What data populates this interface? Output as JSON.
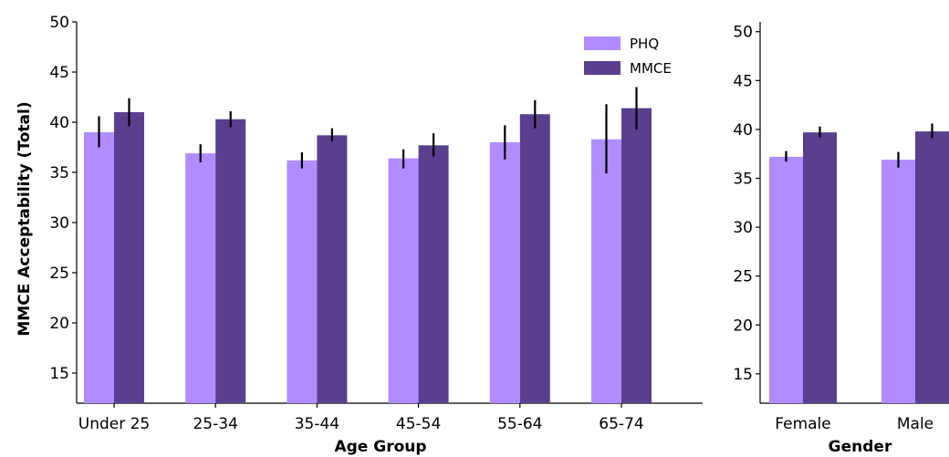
{
  "colors": {
    "PHQ": "#b08cff",
    "MMCE": "#5b3f8f",
    "errbar": "#000000"
  },
  "chart_data": [
    {
      "type": "bar",
      "categories": [
        "Under 25",
        "25-34",
        "35-44",
        "45-54",
        "55-64",
        "65-74"
      ],
      "series": [
        {
          "name": "PHQ",
          "values": [
            39.0,
            36.9,
            36.2,
            36.4,
            38.0,
            38.3
          ],
          "error_low": [
            37.5,
            36.0,
            35.4,
            35.4,
            36.3,
            34.9
          ],
          "error_high": [
            40.6,
            37.8,
            37.0,
            37.3,
            39.7,
            41.8
          ]
        },
        {
          "name": "MMCE",
          "values": [
            41.0,
            40.3,
            38.7,
            37.7,
            40.8,
            41.4
          ],
          "error_low": [
            39.6,
            39.5,
            38.1,
            36.6,
            39.4,
            39.3
          ],
          "error_high": [
            42.4,
            41.1,
            39.4,
            38.9,
            42.2,
            43.5
          ]
        }
      ],
      "xlabel": "Age Group",
      "ylabel": "MMCE Acceptability (Total)",
      "yticks": [
        15,
        20,
        25,
        30,
        35,
        40,
        45,
        50
      ],
      "ylim": [
        12,
        50
      ],
      "legend": {
        "placement": "top-right",
        "entries": [
          "PHQ",
          "MMCE"
        ]
      },
      "grid": false
    },
    {
      "type": "bar",
      "categories": [
        "Female",
        "Male"
      ],
      "series": [
        {
          "name": "PHQ",
          "values": [
            37.2,
            36.9
          ],
          "error_low": [
            36.7,
            36.1
          ],
          "error_high": [
            37.8,
            37.7
          ]
        },
        {
          "name": "MMCE",
          "values": [
            39.7,
            39.8
          ],
          "error_low": [
            39.2,
            39.1
          ],
          "error_high": [
            40.3,
            40.6
          ]
        }
      ],
      "xlabel": "Gender",
      "ylabel": "",
      "yticks": [
        15,
        20,
        25,
        30,
        35,
        40,
        45,
        50
      ],
      "ylim": [
        12,
        51
      ],
      "grid": false
    }
  ]
}
